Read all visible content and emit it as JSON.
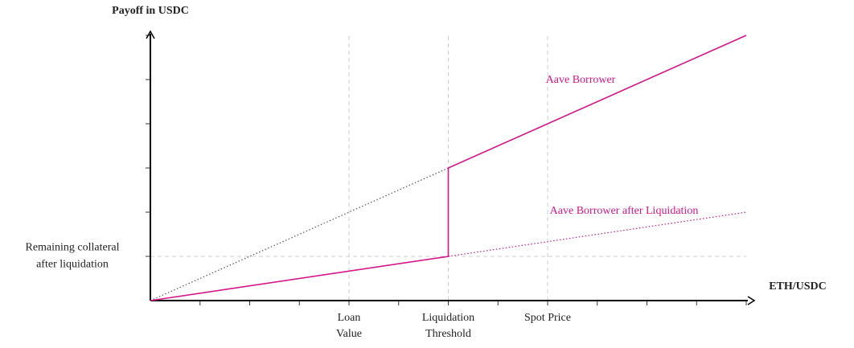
{
  "chart_data": {
    "type": "line",
    "ylabel": "Payoff in USDC",
    "xlabel": "ETH/USDC",
    "xlim": [
      0,
      12
    ],
    "ylim": [
      0,
      6
    ],
    "xticks": [
      {
        "value": 1,
        "label": null
      },
      {
        "value": 2,
        "label": null
      },
      {
        "value": 3,
        "label": null
      },
      {
        "value": 4,
        "label": [
          "Loan",
          "Value"
        ]
      },
      {
        "value": 5,
        "label": null
      },
      {
        "value": 6,
        "label": [
          "Liquidation",
          "Threshold"
        ]
      },
      {
        "value": 7,
        "label": null
      },
      {
        "value": 8,
        "label": [
          "Spot Price"
        ]
      },
      {
        "value": 9,
        "label": null
      },
      {
        "value": 10,
        "label": null
      },
      {
        "value": 11,
        "label": null
      },
      {
        "value": 12,
        "label": null
      }
    ],
    "yticks": [
      {
        "value": 1,
        "label": [
          "Remaining collateral",
          "after liquidation"
        ]
      },
      {
        "value": 2,
        "label": null
      },
      {
        "value": 3,
        "label": null
      },
      {
        "value": 4,
        "label": null
      },
      {
        "value": 5,
        "label": null
      },
      {
        "value": 6,
        "label": null
      }
    ],
    "grid": true,
    "series": [
      {
        "color": "#555555",
        "style": "dotted",
        "x": [
          0,
          12
        ],
        "values": [
          0,
          6
        ]
      },
      {
        "name": "Aave Borrower after Liquidation",
        "color": "#d6168b",
        "style": "dotted",
        "x": [
          6,
          12
        ],
        "values": [
          1,
          2
        ]
      },
      {
        "name": "Aave Borrower",
        "color": "#d6168b",
        "style": "solid",
        "x": [
          0,
          6,
          6,
          12
        ],
        "values": [
          0,
          1,
          3,
          6
        ]
      }
    ]
  }
}
